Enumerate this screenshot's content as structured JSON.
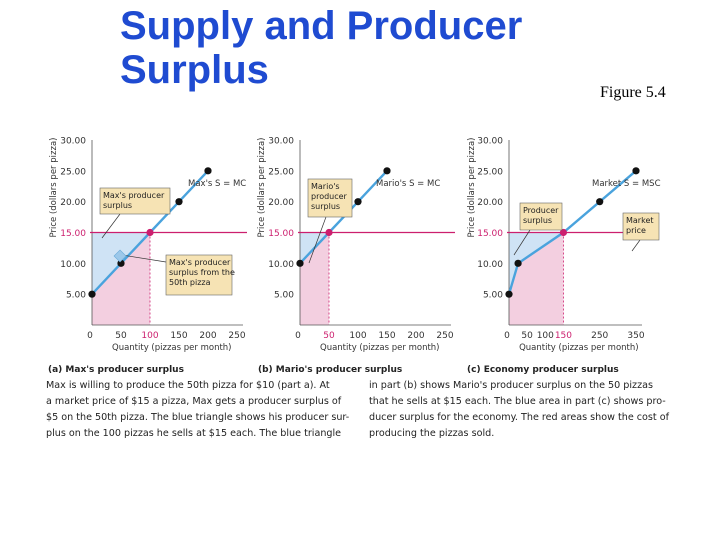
{
  "slide": {
    "title_line1": "Supply and Producer",
    "title_line2": "Surplus",
    "figure_label": "Figure 5.4"
  },
  "colors": {
    "title": "#1f4bd1",
    "supply_line": "#4aa3dd",
    "price_line": "#cc1f6e",
    "producer_surplus_area": "#cfe3f5",
    "cost_area": "#f3cfe0",
    "callout_box": "#f6e3b4"
  },
  "chart_data": [
    {
      "type": "line",
      "panel_label": "(a) Max's producer surplus",
      "xlabel": "Quantity (pizzas per month)",
      "ylabel": "Price (dollars per pizza)",
      "xlim": [
        0,
        250
      ],
      "ylim": [
        0,
        30
      ],
      "x_ticks": [
        "0",
        "50",
        "100",
        "150",
        "200",
        "250"
      ],
      "y_ticks": [
        "5.00",
        "10.00",
        "15.00",
        "20.00",
        "25.00",
        "30.00"
      ],
      "highlight_x_tick": "100",
      "series": [
        {
          "name": "Max's S = MC",
          "x": [
            0,
            50,
            100,
            150,
            200
          ],
          "y": [
            5,
            10,
            15,
            20,
            25
          ]
        }
      ],
      "market_price": 15,
      "price_label": "15.00",
      "callouts": [
        {
          "text": [
            "Max's producer",
            "surplus"
          ]
        },
        {
          "text": [
            "Max's producer",
            "surplus from the",
            "50th pizza"
          ]
        }
      ]
    },
    {
      "type": "line",
      "panel_label": "(b) Mario's producer surplus",
      "xlabel": "Quantity (pizzas per month)",
      "ylabel": "Price (dollars per pizza)",
      "xlim": [
        0,
        250
      ],
      "ylim": [
        0,
        30
      ],
      "x_ticks": [
        "0",
        "50",
        "100",
        "150",
        "200",
        "250"
      ],
      "y_ticks": [
        "5.00",
        "10.00",
        "15.00",
        "20.00",
        "25.00",
        "30.00"
      ],
      "highlight_x_tick": "50",
      "series": [
        {
          "name": "Mario's S = MC",
          "x": [
            0,
            50,
            100,
            150
          ],
          "y": [
            10,
            15,
            20,
            25
          ]
        }
      ],
      "market_price": 15,
      "price_label": "15.00",
      "callouts": [
        {
          "text": [
            "Mario's",
            "producer",
            "surplus"
          ]
        }
      ]
    },
    {
      "type": "line",
      "panel_label": "(c) Economy producer surplus",
      "xlabel": "Quantity (pizzas per month)",
      "ylabel": "Price (dollars per pizza)",
      "xlim": [
        0,
        350
      ],
      "ylim": [
        0,
        30
      ],
      "x_ticks": [
        "0",
        "50",
        "100",
        "150",
        "250",
        "350"
      ],
      "y_ticks": [
        "5.00",
        "10.00",
        "15.00",
        "20.00",
        "25.00",
        "30.00"
      ],
      "highlight_x_tick": "150",
      "series": [
        {
          "name": "Market S = MSC",
          "x": [
            0,
            25,
            150,
            250,
            350
          ],
          "y": [
            5,
            10,
            15,
            20,
            25
          ]
        }
      ],
      "market_price": 15,
      "price_label": "15.00",
      "callouts": [
        {
          "text": [
            "Producer",
            "surplus"
          ]
        },
        {
          "text": [
            "Market",
            "price"
          ]
        }
      ]
    }
  ],
  "caption": {
    "left": [
      "Max is willing to produce the 50th pizza for $10 (part a). At",
      "a market price of $15 a pizza, Max gets a producer surplus of",
      "$5 on the 50th pizza. The blue triangle shows his producer sur-",
      "plus on the 100 pizzas he sells at $15 each. The blue triangle"
    ],
    "right": [
      "in part (b) shows Mario's producer surplus on the 50 pizzas",
      "that he sells at $15 each. The blue area in part (c) shows pro-",
      "ducer surplus for the economy. The red areas show the cost of",
      "producing the pizzas sold."
    ]
  }
}
